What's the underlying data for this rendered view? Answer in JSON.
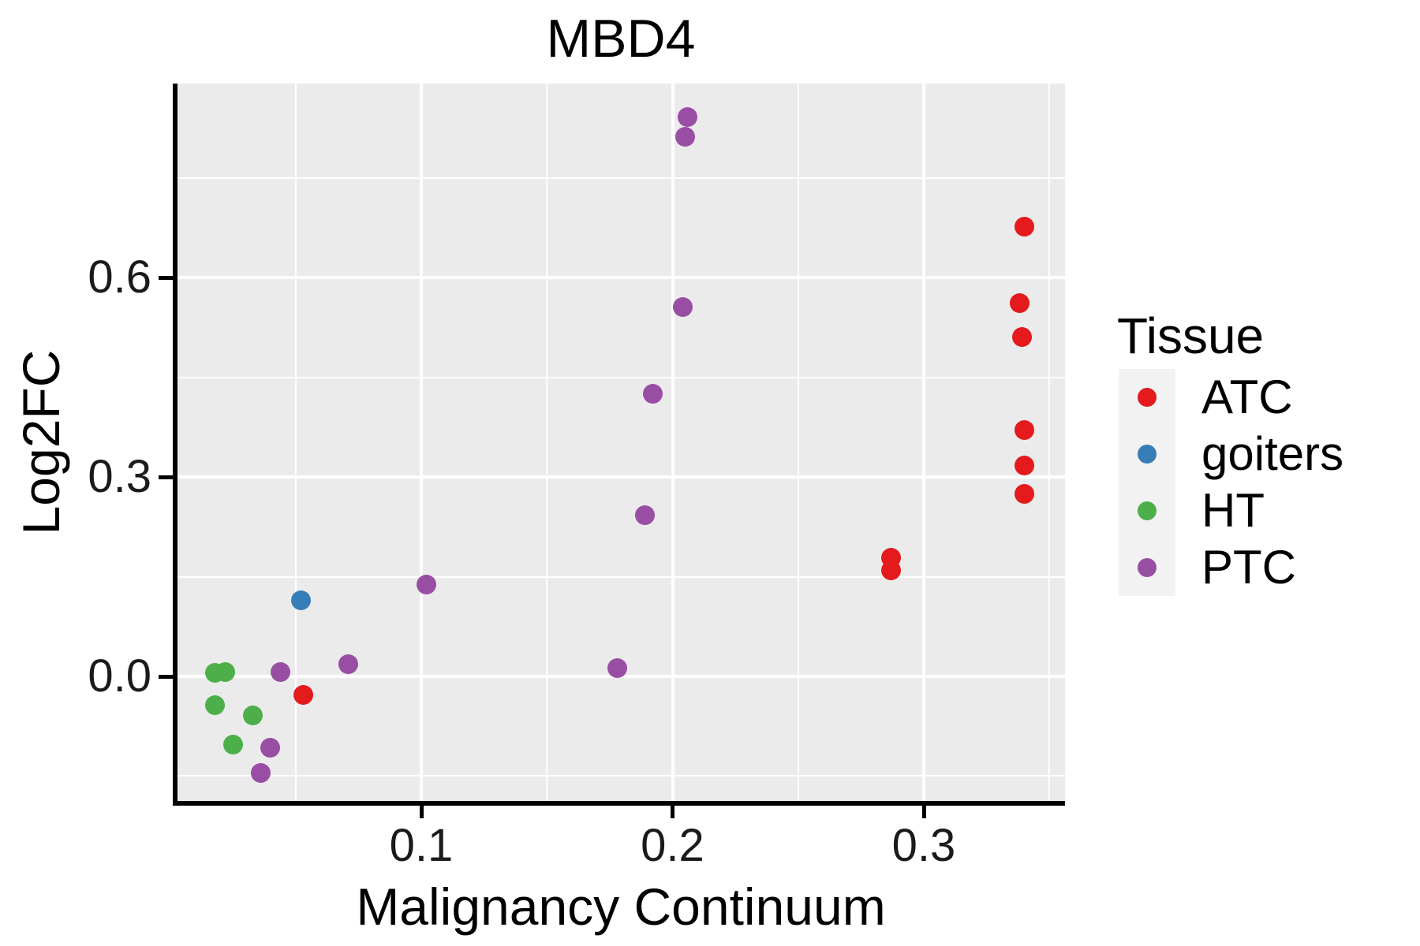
{
  "title": "MBD4",
  "axes": {
    "x": {
      "label": "Malignancy Continuum",
      "major_ticks": [
        {
          "label": "0.1",
          "value": 0.1
        },
        {
          "label": "0.2",
          "value": 0.2
        },
        {
          "label": "0.3",
          "value": 0.3
        }
      ],
      "minor_ticks": [
        0.05,
        0.15,
        0.25,
        0.35
      ],
      "range": [
        0.003,
        0.356
      ]
    },
    "y": {
      "label": "Log2FC",
      "major_ticks": [
        {
          "label": "0.0",
          "value": 0.0
        },
        {
          "label": "0.3",
          "value": 0.3
        },
        {
          "label": "0.6",
          "value": 0.6
        }
      ],
      "minor_ticks": [
        -0.15,
        0.15,
        0.45,
        0.75
      ],
      "range": [
        -0.19,
        0.89
      ]
    }
  },
  "legend": {
    "title": "Tissue",
    "items": [
      {
        "label": "ATC",
        "color": "#E41A1C"
      },
      {
        "label": "goiters",
        "color": "#377EB8"
      },
      {
        "label": "HT",
        "color": "#4DAF4A"
      },
      {
        "label": "PTC",
        "color": "#984EA3"
      }
    ]
  },
  "colors": {
    "panel_background": "#EBEBEB",
    "grid": "#FFFFFF",
    "legend_key_background": "#F2F2F2",
    "axis": "#000000",
    "text": "#1A1A1A"
  },
  "chart_data": {
    "type": "scatter",
    "title": "MBD4",
    "xlabel": "Malignancy Continuum",
    "ylabel": "Log2FC",
    "xlim": [
      0.003,
      0.356
    ],
    "ylim": [
      -0.19,
      0.89
    ],
    "grid": true,
    "legend_title": "Tissue",
    "legend_position": "right",
    "series": [
      {
        "name": "ATC",
        "color": "#E41A1C",
        "points": [
          [
            0.34,
            0.677
          ],
          [
            0.338,
            0.562
          ],
          [
            0.339,
            0.511
          ],
          [
            0.34,
            0.371
          ],
          [
            0.34,
            0.317
          ],
          [
            0.34,
            0.274
          ],
          [
            0.287,
            0.179
          ],
          [
            0.287,
            0.16
          ],
          [
            0.053,
            -0.028
          ]
        ]
      },
      {
        "name": "goiters",
        "color": "#377EB8",
        "points": [
          [
            0.052,
            0.114
          ]
        ]
      },
      {
        "name": "HT",
        "color": "#4DAF4A",
        "points": [
          [
            0.018,
            0.005
          ],
          [
            0.022,
            0.007
          ],
          [
            0.018,
            -0.043
          ],
          [
            0.033,
            -0.059
          ],
          [
            0.025,
            -0.102
          ]
        ]
      },
      {
        "name": "PTC",
        "color": "#984EA3",
        "points": [
          [
            0.206,
            0.841
          ],
          [
            0.205,
            0.812
          ],
          [
            0.204,
            0.555
          ],
          [
            0.192,
            0.425
          ],
          [
            0.189,
            0.243
          ],
          [
            0.178,
            0.012
          ],
          [
            0.102,
            0.138
          ],
          [
            0.071,
            0.018
          ],
          [
            0.044,
            0.006
          ],
          [
            0.04,
            -0.107
          ],
          [
            0.036,
            -0.145
          ]
        ]
      }
    ]
  }
}
